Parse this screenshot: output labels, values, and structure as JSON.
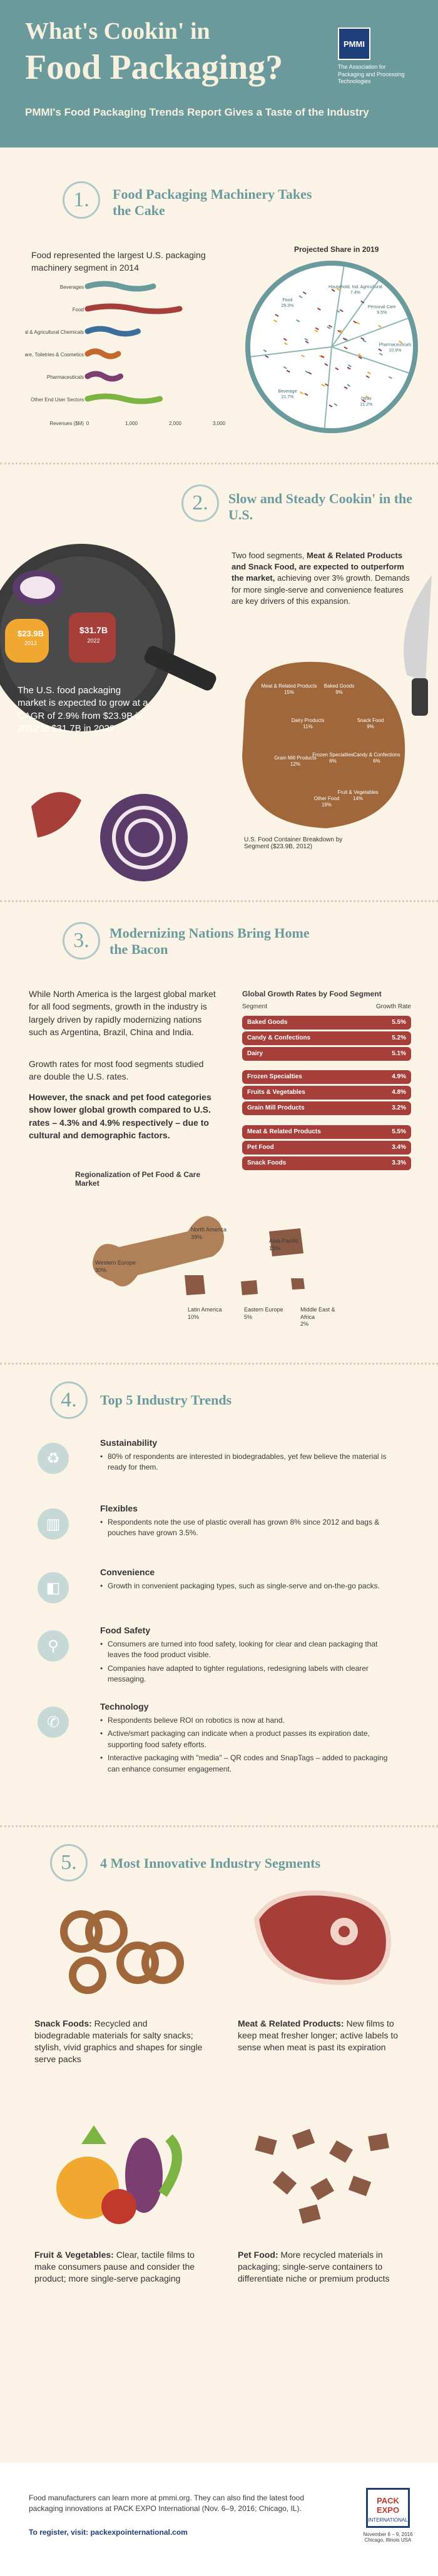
{
  "header": {
    "title_line1": "What's Cookin' in",
    "title_line2": "Food Packaging?",
    "subtitle": "PMMI's Food Packaging Trends Report Gives a Taste of the Industry",
    "logo_mark": "PMMI",
    "logo_text": "The Association for Packaging and Processing Technologies"
  },
  "section1": {
    "number": "1.",
    "title": "Food Packaging Machinery Takes the Cake",
    "intro": "Food represented the largest U.S. packaging machinery segment in 2014",
    "chart_title": "Projected Share in 2019",
    "bar_chart_data": {
      "type": "bar",
      "categories": [
        "Beverages",
        "Food",
        "Household, Industrial & Agricultural Chemicals",
        "Personal Care, Toiletries & Cosmetics",
        "Pharmaceuticals",
        "Other End User Sectors"
      ],
      "values": [
        1500,
        2100,
        1150,
        700,
        750,
        1650
      ],
      "xlabel": "Revenues ($M)",
      "xticks": [
        "0",
        "1,000",
        "2,000",
        "3,000"
      ]
    },
    "pie_labels": [
      {
        "label": "Household, Ind. Agricultural",
        "value": "7.4%"
      },
      {
        "label": "Personal Care",
        "value": "9.5%"
      },
      {
        "label": "Pharmaceuticals",
        "value": "10.9%"
      },
      {
        "label": "Other",
        "value": "21.2%"
      },
      {
        "label": "Beverage",
        "value": "21.7%"
      },
      {
        "label": "Food",
        "value": "29.3%"
      }
    ]
  },
  "section2": {
    "number": "2.",
    "title": "Slow and Steady Cookin' in the U.S.",
    "pot_value1": "$23.9B",
    "pot_year1": "2012",
    "pot_value2": "$31.7B",
    "pot_year2": "2022",
    "growth_text": "The U.S. food packaging market is expected to grow at a CAGR of 2.9% from $23.9B in 2012 to $31.7B in 2022.",
    "body_html_parts": [
      "Two food segments, ",
      "Meat & Related Products and Snack Food, are expected to outperform the market,",
      " achieving over 3% growth. Demands for more single-serve and convenience features are key drivers of this expansion."
    ],
    "cutting_board_labels": [
      {
        "label": "Meat & Related Products",
        "value": "15%"
      },
      {
        "label": "Baked Goods",
        "value": "9%"
      },
      {
        "label": "Dairy Products",
        "value": "11%"
      },
      {
        "label": "Snack Food",
        "value": "9%"
      },
      {
        "label": "Candy & Confections",
        "value": "6%"
      },
      {
        "label": "Frozen Specialties",
        "value": "6%"
      },
      {
        "label": "Grain Mill Products",
        "value": "12%"
      },
      {
        "label": "Fruit & Vegetables",
        "value": "14%"
      },
      {
        "label": "Other Food",
        "value": "19%"
      }
    ],
    "board_caption": "U.S. Food Container Breakdown by Segment ($23.9B, 2012)"
  },
  "section3": {
    "number": "3.",
    "title": "Modernizing Nations Bring Home the Bacon",
    "para1": "While North America is the largest global market for all food segments, growth in the industry is largely driven by rapidly modernizing nations such as Argentina, Brazil, China and India.",
    "para2": "Growth rates for most food segments studied are double the U.S. rates.",
    "para3": "However, the snack and pet food categories show lower global growth compared to U.S. rates – 4.3% and 4.9% respectively – due to cultural and demographic factors.",
    "rates_title": "Global Growth Rates by Food Segment",
    "rates_col1": "Segment",
    "rates_col2": "Growth Rate",
    "rates": [
      {
        "name": "Baked Goods",
        "value": "5.5%"
      },
      {
        "name": "Candy & Confections",
        "value": "5.2%"
      },
      {
        "name": "Dairy",
        "value": "5.1%"
      },
      {
        "name": "Frozen Specialties",
        "value": "4.9%"
      },
      {
        "name": "Fruits & Vegetables",
        "value": "4.8%"
      },
      {
        "name": "Grain Mill Products",
        "value": "3.2%"
      },
      {
        "name": "Meat & Related Products",
        "value": "5.5%"
      },
      {
        "name": "Pet Food",
        "value": "3.4%"
      },
      {
        "name": "Snack Foods",
        "value": "3.3%"
      }
    ],
    "pet_title": "Regionalization of Pet Food & Care Market",
    "pet_regions": [
      {
        "label": "North America",
        "value": "39%"
      },
      {
        "label": "Western Europe",
        "value": "30%"
      },
      {
        "label": "Asia-Pacific",
        "value": "15%"
      },
      {
        "label": "Latin America",
        "value": "10%"
      },
      {
        "label": "Eastern Europe",
        "value": "5%"
      },
      {
        "label": "Middle East & Africa",
        "value": "2%"
      }
    ]
  },
  "section4": {
    "number": "4.",
    "title": "Top 5 Industry Trends",
    "trends": [
      {
        "icon": "♻",
        "heading": "Sustainability",
        "items": [
          "80% of respondents are interested in biodegradables, yet few believe the material is ready for them."
        ]
      },
      {
        "icon": "▥",
        "heading": "Flexibles",
        "items": [
          "Respondents note the use of plastic overall has grown 8% since 2012 and bags & pouches have grown 3.5%."
        ]
      },
      {
        "icon": "◧",
        "heading": "Convenience",
        "items": [
          "Growth in convenient packaging types, such as single-serve and on-the-go packs."
        ]
      },
      {
        "icon": "⚲",
        "heading": "Food Safety",
        "items": [
          "Consumers are turned into food safety, looking for clear and clean packaging that leaves the food product visible.",
          "Companies have adapted to tighter regulations, redesigning labels with clearer messaging."
        ]
      },
      {
        "icon": "✆",
        "heading": "Technology",
        "items": [
          "Respondents believe ROI on robotics is now at hand.",
          "Active/smart packaging can indicate when a product passes its expiration date, supporting food safety efforts.",
          "Interactive packaging with \"media\" – QR codes and SnapTags – added to packaging can enhance consumer engagement."
        ]
      }
    ]
  },
  "section5": {
    "number": "5.",
    "title": "4 Most Innovative Industry Segments",
    "items": [
      {
        "bold": "Snack Foods:",
        "text": " Recycled and biodegradable materials for salty snacks; stylish, vivid graphics and shapes for single serve packs"
      },
      {
        "bold": "Meat & Related Products:",
        "text": " New films to keep meat fresher longer; active labels to sense when meat is past its expiration"
      },
      {
        "bold": "Fruit & Vegetables:",
        "text": " Clear, tactile films to make consumers pause and consider the product; more single-serve packaging"
      },
      {
        "bold": "Pet Food:",
        "text": " More recycled materials in packaging; single-serve containers to differentiate niche or premium products"
      }
    ]
  },
  "footer": {
    "line1": "Food manufacturers can learn more at pmmi.org. They can also find the latest food packaging innovations at PACK EXPO International (Nov. 6–9, 2016; Chicago, IL).",
    "line2": "To register, visit: packexpointernational.com",
    "badge": "PACK EXPO",
    "badge_sub": "INTERNATIONAL",
    "dates": "November 6 – 9, 2016 Chicago, Illinois USA"
  },
  "colors": {
    "teal": "#6b9a9d",
    "cream": "#fbf4e6",
    "meat": "#a63f3a",
    "dark": "#3a3a3a"
  }
}
